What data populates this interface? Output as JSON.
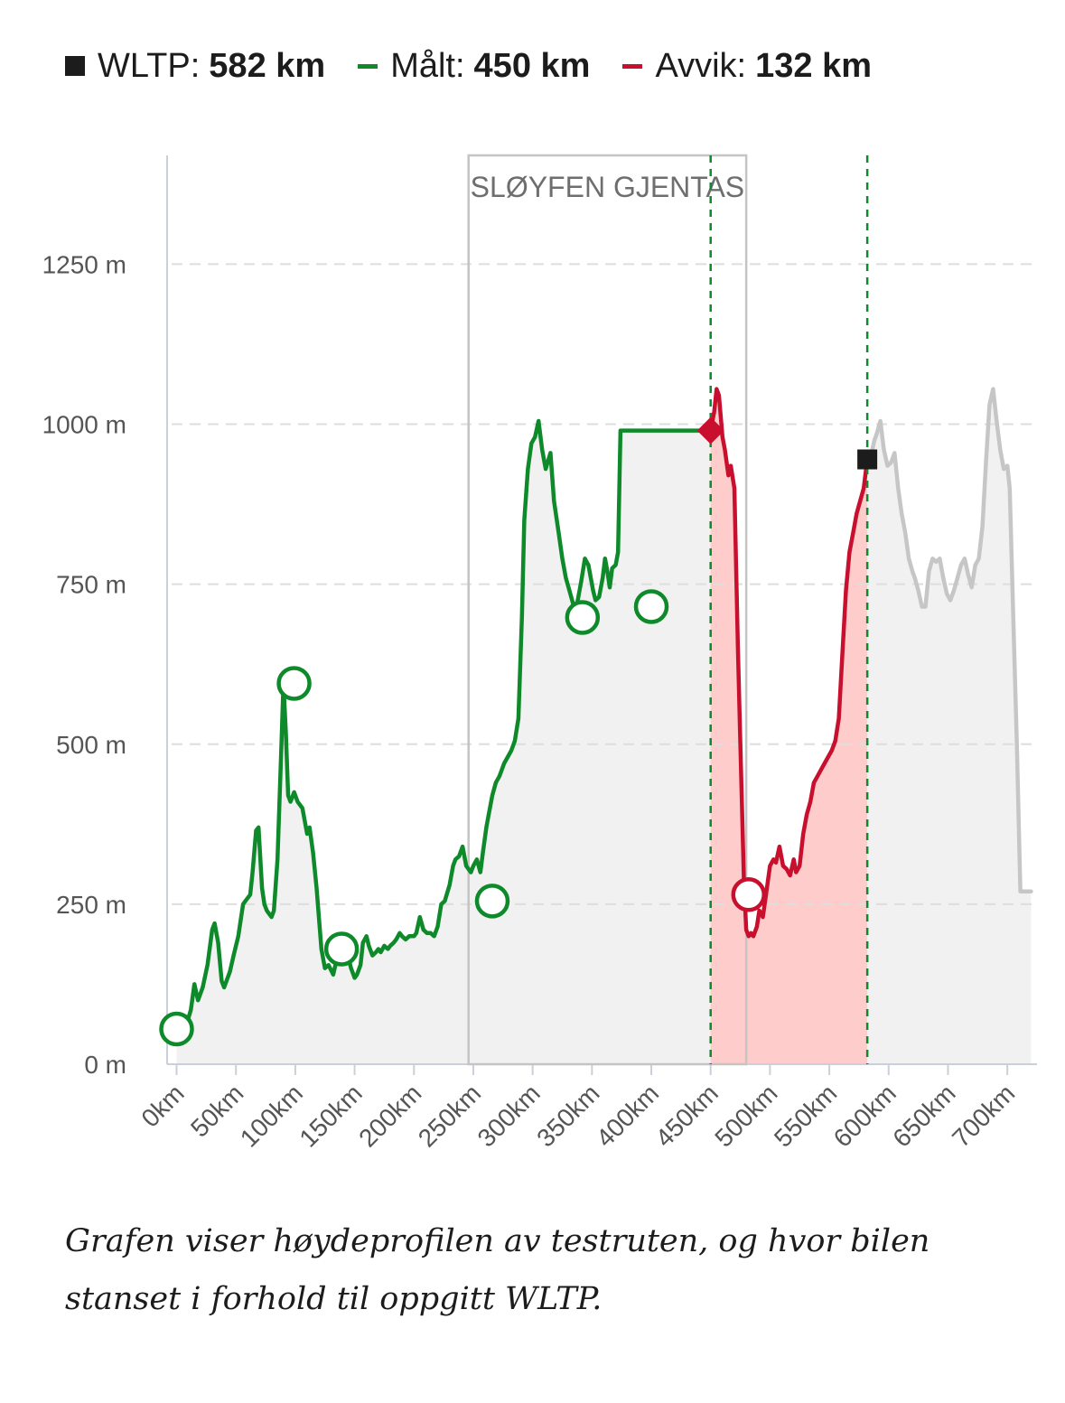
{
  "legend": {
    "wltp": {
      "label": "WLTP:",
      "value": "582 km",
      "color": "#1c1c1c",
      "icon": "square-icon"
    },
    "measured": {
      "label": "Målt:",
      "value": "450 km",
      "color": "#0e8a2a",
      "icon": "line-icon"
    },
    "deviation": {
      "label": "Avvik:",
      "value": "132 km",
      "color": "#c8102e",
      "icon": "line-icon"
    }
  },
  "caption": "Grafen viser høydeprofilen av testruten, og hvor bilen stanset i forhold til oppgitt WLTP.",
  "chart_data": {
    "type": "area",
    "xlabel": "",
    "ylabel": "",
    "xlim": [
      -8,
      725
    ],
    "ylim": [
      0,
      1420
    ],
    "x_ticks": [
      0,
      50,
      100,
      150,
      200,
      250,
      300,
      350,
      400,
      450,
      500,
      550,
      600,
      650,
      700
    ],
    "x_tick_labels": [
      "0km",
      "50km",
      "100km",
      "150km",
      "200km",
      "250km",
      "300km",
      "350km",
      "400km",
      "450km",
      "500km",
      "550km",
      "600km",
      "650km",
      "700km"
    ],
    "y_ticks": [
      0,
      250,
      500,
      750,
      1000,
      1250
    ],
    "y_tick_labels": [
      "0 m",
      "250 m",
      "500 m",
      "750 m",
      "1000 m",
      "1250 m"
    ],
    "grid": "horizontal dashed",
    "loop_box": {
      "label": "SLØYFEN GJENTAS",
      "x_start": 246,
      "x_end": 480
    },
    "colors": {
      "measured": "#0e8a2a",
      "deviation": "#c8102e",
      "rest": "#c6c6c6",
      "fill": "#f1f1f1",
      "deviation_fill": "#ffcccc"
    },
    "series": [
      {
        "name": "Målt",
        "x": [
          0,
          8,
          12,
          15,
          18,
          22,
          26,
          30,
          32,
          35,
          38,
          40,
          45,
          48,
          52,
          56,
          58,
          62,
          64,
          67,
          69,
          72,
          74,
          76,
          80,
          82,
          85,
          88,
          90,
          92,
          94,
          96,
          99,
          102,
          106,
          110,
          112,
          115,
          118,
          122,
          125,
          128,
          132,
          135,
          137,
          139,
          141,
          143,
          145,
          147,
          150,
          152,
          155,
          157,
          160,
          162,
          165,
          168,
          170,
          172,
          175,
          178,
          180,
          183,
          185,
          188,
          190,
          193,
          196,
          200,
          202,
          205,
          208,
          211,
          214,
          217,
          220,
          223,
          226,
          230,
          233,
          235,
          238,
          241,
          244,
          248,
          250,
          253,
          256,
          258,
          261,
          263,
          266,
          269,
          272,
          274,
          276,
          279,
          282,
          285,
          288,
          291,
          293,
          296,
          299,
          302,
          305,
          308,
          311,
          315,
          318,
          322,
          325,
          328,
          331,
          334,
          336,
          338,
          341,
          344,
          347,
          349,
          351,
          353,
          356,
          359,
          361,
          363,
          365,
          367,
          370,
          372,
          374,
          377,
          380,
          383,
          386,
          389,
          392,
          395,
          398,
          400,
          403,
          406,
          409,
          412,
          415,
          418,
          421,
          424,
          427,
          430,
          433,
          436,
          438,
          441,
          444,
          446,
          449,
          450
        ],
        "y": [
          55,
          60,
          85,
          125,
          100,
          120,
          155,
          210,
          220,
          190,
          130,
          120,
          145,
          170,
          200,
          250,
          255,
          265,
          300,
          365,
          370,
          275,
          250,
          240,
          230,
          240,
          320,
          480,
          595,
          520,
          420,
          410,
          425,
          410,
          400,
          360,
          370,
          330,
          275,
          180,
          150,
          155,
          140,
          165,
          180,
          160,
          175,
          190,
          165,
          150,
          135,
          140,
          155,
          190,
          200,
          185,
          170,
          175,
          180,
          175,
          185,
          180,
          185,
          190,
          195,
          205,
          200,
          195,
          200,
          200,
          205,
          230,
          210,
          205,
          205,
          200,
          215,
          250,
          255,
          280,
          310,
          320,
          325,
          340,
          310,
          300,
          310,
          320,
          300,
          330,
          370,
          390,
          420,
          440,
          450,
          460,
          470,
          480,
          490,
          505,
          540,
          700,
          850,
          930,
          970,
          980,
          1005,
          960,
          930,
          955,
          880,
          830,
          790,
          760,
          740,
          720,
          710,
          725,
          755,
          790,
          780,
          760,
          740,
          725,
          730,
          760,
          790,
          770,
          745,
          775,
          780,
          800,
          990,
          990,
          990,
          990,
          990,
          990,
          990,
          990,
          990,
          990,
          990,
          990,
          990,
          990,
          990,
          990,
          990,
          990,
          990,
          990,
          990,
          990,
          990,
          990,
          990,
          990,
          990,
          990
        ]
      },
      {
        "name": "Avvik",
        "x": [
          450,
          453,
          455,
          457,
          460,
          462,
          465,
          467,
          470,
          473,
          475,
          478,
          480,
          482,
          484,
          486,
          489,
          491,
          494,
          497,
          500,
          503,
          505,
          508,
          511,
          514,
          517,
          520,
          522,
          525,
          528,
          531,
          534,
          537,
          540,
          543,
          546,
          549,
          552,
          555,
          558,
          561,
          564,
          567,
          570,
          573,
          576,
          579,
          582
        ],
        "y": [
          990,
          1020,
          1055,
          1045,
          980,
          960,
          920,
          935,
          900,
          650,
          500,
          290,
          210,
          200,
          205,
          200,
          215,
          240,
          230,
          270,
          310,
          320,
          315,
          340,
          310,
          305,
          295,
          320,
          300,
          310,
          360,
          390,
          410,
          440,
          450,
          460,
          470,
          480,
          490,
          505,
          540,
          640,
          740,
          800,
          830,
          860,
          880,
          900,
          945
        ]
      },
      {
        "name": "",
        "x": [
          582,
          585,
          588,
          590,
          593,
          596,
          599,
          602,
          605,
          608,
          611,
          614,
          617,
          620,
          622,
          625,
          628,
          631,
          634,
          637,
          640,
          643,
          646,
          649,
          652,
          655,
          658,
          661,
          664,
          667,
          670,
          673,
          676,
          679,
          682,
          685,
          688,
          691,
          694,
          697,
          700,
          702,
          705,
          708,
          711,
          714,
          717,
          720
        ],
        "y": [
          945,
          950,
          975,
          985,
          1005,
          960,
          935,
          940,
          955,
          900,
          860,
          830,
          790,
          770,
          760,
          740,
          715,
          715,
          770,
          790,
          785,
          790,
          760,
          735,
          725,
          740,
          760,
          780,
          790,
          765,
          745,
          780,
          790,
          840,
          940,
          1030,
          1055,
          1005,
          960,
          930,
          935,
          900,
          700,
          500,
          270,
          270,
          270,
          270
        ]
      }
    ],
    "markers": [
      {
        "type": "circle",
        "x": 0,
        "y": 55,
        "color": "#0e8a2a"
      },
      {
        "type": "circle",
        "x": 99,
        "y": 595,
        "color": "#0e8a2a"
      },
      {
        "type": "circle",
        "x": 139,
        "y": 180,
        "color": "#0e8a2a"
      },
      {
        "type": "circle",
        "x": 266,
        "y": 255,
        "color": "#0e8a2a"
      },
      {
        "type": "circle",
        "x": 342,
        "y": 698,
        "color": "#0e8a2a"
      },
      {
        "type": "circle",
        "x": 400,
        "y": 715,
        "color": "#0e8a2a"
      },
      {
        "type": "circle",
        "x": 482,
        "y": 265,
        "color": "#c8102e"
      },
      {
        "type": "diamond",
        "x": 450,
        "y": 990,
        "color": "#c8102e"
      },
      {
        "type": "square",
        "x": 582,
        "y": 945,
        "color": "#1c1c1c"
      }
    ],
    "vlines": [
      450,
      582
    ]
  }
}
